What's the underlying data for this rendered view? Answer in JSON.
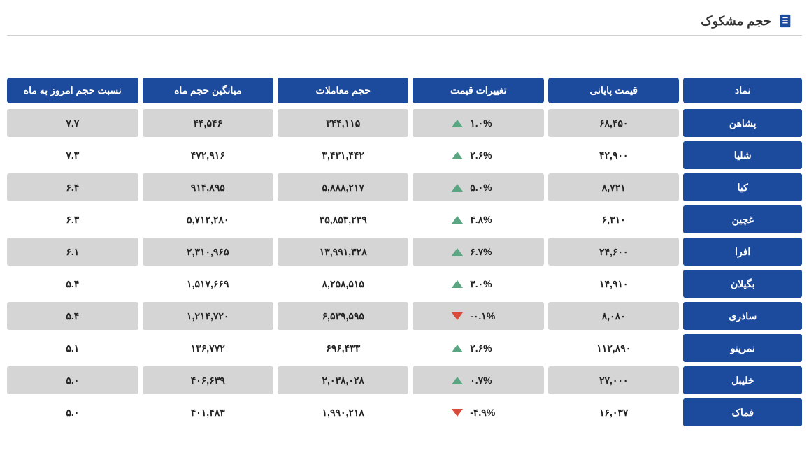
{
  "header": {
    "title": "حجم مشکوک",
    "icon_color": "#1c4a9c"
  },
  "table": {
    "columns": [
      {
        "key": "symbol",
        "label": "نماد"
      },
      {
        "key": "final_price",
        "label": "قیمت پایانی"
      },
      {
        "key": "price_change",
        "label": "تغییرات قیمت"
      },
      {
        "key": "trade_volume",
        "label": "حجم معاملات"
      },
      {
        "key": "avg_month_volume",
        "label": "میانگین حجم ماه"
      },
      {
        "key": "ratio",
        "label": "نسبت حجم امروز به ماه"
      }
    ],
    "rows": [
      {
        "symbol": "پشاهن",
        "final_price": "۶۸,۴۵۰",
        "price_change": "۱.۰%",
        "direction": "up",
        "trade_volume": "۳۴۴,۱۱۵",
        "avg_month_volume": "۴۴,۵۴۶",
        "ratio": "۷.۷"
      },
      {
        "symbol": "شلیا",
        "final_price": "۴۲,۹۰۰",
        "price_change": "۲.۶%",
        "direction": "up",
        "trade_volume": "۳,۴۳۱,۴۴۲",
        "avg_month_volume": "۴۷۲,۹۱۶",
        "ratio": "۷.۳"
      },
      {
        "symbol": "کیا",
        "final_price": "۸,۷۲۱",
        "price_change": "۵.۰%",
        "direction": "up",
        "trade_volume": "۵,۸۸۸,۲۱۷",
        "avg_month_volume": "۹۱۴,۸۹۵",
        "ratio": "۶.۴"
      },
      {
        "symbol": "غچین",
        "final_price": "۶,۳۱۰",
        "price_change": "۴.۸%",
        "direction": "up",
        "trade_volume": "۳۵,۸۵۳,۲۳۹",
        "avg_month_volume": "۵,۷۱۲,۲۸۰",
        "ratio": "۶.۳"
      },
      {
        "symbol": "افرا",
        "final_price": "۲۴,۶۰۰",
        "price_change": "۶.۷%",
        "direction": "up",
        "trade_volume": "۱۳,۹۹۱,۳۲۸",
        "avg_month_volume": "۲,۳۱۰,۹۶۵",
        "ratio": "۶.۱"
      },
      {
        "symbol": "بگیلان",
        "final_price": "۱۴,۹۱۰",
        "price_change": "۳.۰%",
        "direction": "up",
        "trade_volume": "۸,۲۵۸,۵۱۵",
        "avg_month_volume": "۱,۵۱۷,۶۶۹",
        "ratio": "۵.۴"
      },
      {
        "symbol": "ساذری",
        "final_price": "۸,۰۸۰",
        "price_change": "-۰.۱%",
        "direction": "down",
        "trade_volume": "۶,۵۳۹,۵۹۵",
        "avg_month_volume": "۱,۲۱۴,۷۲۰",
        "ratio": "۵.۴"
      },
      {
        "symbol": "نمرینو",
        "final_price": "۱۱۲,۸۹۰",
        "price_change": "۲.۶%",
        "direction": "up",
        "trade_volume": "۶۹۶,۴۳۳",
        "avg_month_volume": "۱۳۶,۷۷۲",
        "ratio": "۵.۱"
      },
      {
        "symbol": "خلیبل",
        "final_price": "۲۷,۰۰۰",
        "price_change": "۰.۷%",
        "direction": "up",
        "trade_volume": "۲,۰۳۸,۰۲۸",
        "avg_month_volume": "۴۰۶,۶۳۹",
        "ratio": "۵.۰"
      },
      {
        "symbol": "فماک",
        "final_price": "۱۶,۰۳۷",
        "price_change": "-۴.۹%",
        "direction": "down",
        "trade_volume": "۱,۹۹۰,۲۱۸",
        "avg_month_volume": "۴۰۱,۴۸۳",
        "ratio": "۵.۰"
      }
    ],
    "colors": {
      "header_bg": "#1c4a9c",
      "header_text": "#ffffff",
      "row_odd_bg": "#d5d5d5",
      "row_even_bg": "#ffffff",
      "text_color": "#222222",
      "up_color": "#5aa582",
      "down_color": "#d94a3a"
    }
  }
}
